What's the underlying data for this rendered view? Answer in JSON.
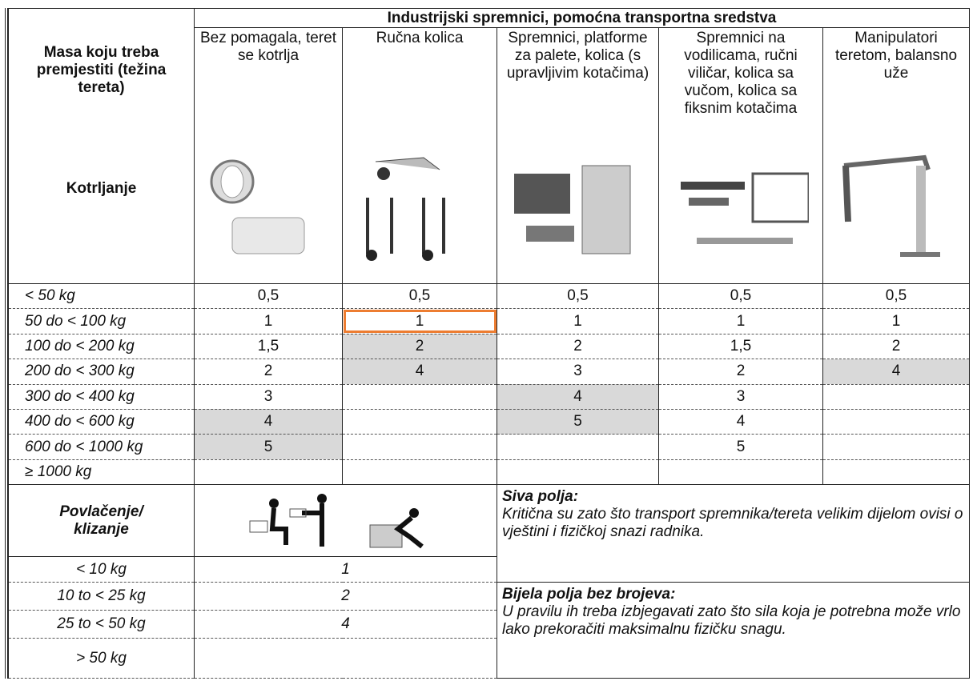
{
  "table": {
    "header": {
      "group_title": "Industrijski spremnici, pomoćna transportna sredstva",
      "mass_label": "Masa koju treba premjestiti (težina tereta)",
      "rolling_label": "Kotrljanje",
      "columns": [
        "Bez pomagala, teret se kotrlja",
        "Ručna kolica",
        "Spremnici, platforme za palete, kolica (s upravljivim kotačima)",
        "Spremnici na vodilicama, ručni viličar, kolica sa vučom, kolica sa fiksnim kotačima",
        "Manipulatori teretom, balansno uže"
      ]
    },
    "rows": [
      {
        "mass": "< 50 kg",
        "values": [
          "0,5",
          "0,5",
          "0,5",
          "0,5",
          "0,5"
        ]
      },
      {
        "mass": "50 do < 100 kg",
        "values": [
          "1",
          "1",
          "1",
          "1",
          "1"
        ]
      },
      {
        "mass": "100 do < 200 kg",
        "values": [
          "1,5",
          "2",
          "2",
          "1,5",
          "2"
        ]
      },
      {
        "mass": "200 do < 300 kg",
        "values": [
          "2",
          "4",
          "3",
          "2",
          "4"
        ]
      },
      {
        "mass": "300 do < 400 kg",
        "values": [
          "3",
          null,
          "4",
          "3",
          null
        ]
      },
      {
        "mass": "400 do < 600 kg",
        "values": [
          "4",
          null,
          "5",
          "4",
          null
        ]
      },
      {
        "mass": "600 do < 1000 kg",
        "values": [
          "5",
          null,
          null,
          "5",
          null
        ]
      },
      {
        "mass": "≥ 1000 kg",
        "values": [
          null,
          null,
          null,
          null,
          null
        ]
      }
    ],
    "pulling": {
      "label": "Povlačenje/ klizanje",
      "rows": [
        {
          "mass": "< 10 kg",
          "value": "1"
        },
        {
          "mass": "10 to < 25 kg",
          "value": "2"
        },
        {
          "mass": "25 to < 50 kg",
          "value": "4"
        },
        {
          "mass": "> 50 kg",
          "value": null
        }
      ]
    },
    "notes": [
      {
        "title": "Siva polja:",
        "text": "Kritična su zato što transport  spremnika/tereta velikim dijelom ovisi  o vještini i fizičkoj snazi radnika."
      },
      {
        "title": "Bijela polja bez brojeva:",
        "text": "U pravilu ih treba izbjegavati zato što sila koja je potrebna može vrlo lako prekoračiti maksimalnu fizičku snagu."
      }
    ]
  }
}
